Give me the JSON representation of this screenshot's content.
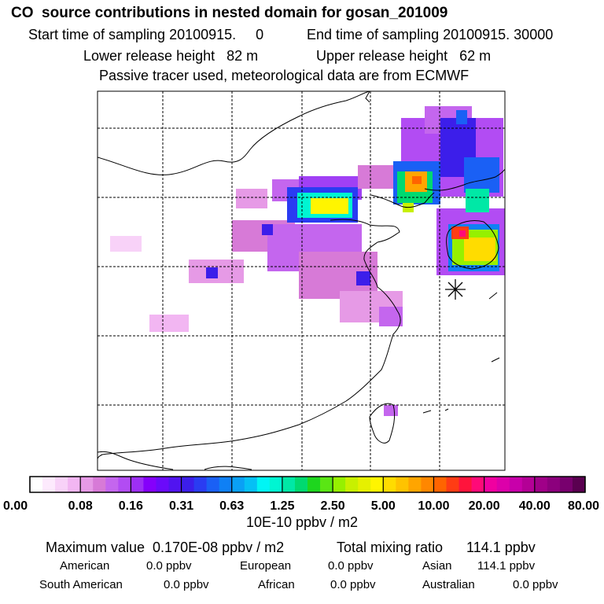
{
  "header": {
    "title": "CO  source contributions in nested domain for gosan_201009",
    "start": "Start time of sampling 20100915.     0",
    "end": "End time of sampling 20100915. 30000",
    "lower": "Lower release height   82 m",
    "upper": "Upper release height   62 m",
    "note": "Passive tracer used, meteorological data are from ECMWF"
  },
  "colorbar": {
    "ticks": [
      "0.00",
      "0.08",
      "0.16",
      "0.31",
      "0.63",
      "1.25",
      "2.50",
      "5.00",
      "10.00",
      "20.00",
      "40.00",
      "80.00"
    ],
    "unit": "10E-10 ppbv / m2",
    "colors": [
      "#ffffff",
      "#fdeafd",
      "#f8d2f8",
      "#f2b6f2",
      "#e69ae6",
      "#d77ad7",
      "#c466ee",
      "#b24cf3",
      "#9d2ff5",
      "#8500fb",
      "#6b0afa",
      "#5114f0",
      "#3c1eea",
      "#2a3cf2",
      "#1a60f5",
      "#0f80f5",
      "#0aa0f5",
      "#05c0f5",
      "#00f5f5",
      "#00f5d2",
      "#00e8a6",
      "#00d970",
      "#1ed61e",
      "#5ae614",
      "#96f000",
      "#c8f000",
      "#e6f000",
      "#fff500",
      "#ffdc00",
      "#ffc300",
      "#ffa500",
      "#ff8700",
      "#ff6400",
      "#ff3c14",
      "#ff143c",
      "#ff0a78",
      "#f000a0",
      "#dc00aa",
      "#c800aa",
      "#b40096",
      "#a00088",
      "#8c007d",
      "#78006e",
      "#5a0050"
    ]
  },
  "footer": {
    "max": "Maximum value  0.170E-08 ppbv / m2",
    "total": "Total mixing ratio      114.1 ppbv",
    "american": "American",
    "american_val": "0.0 ppbv",
    "european": "European",
    "european_val": "0.0 ppbv",
    "asian": "Asian",
    "asian_val": "114.1 ppbv",
    "south_american": "South American",
    "south_american_val": "0.0 ppbv",
    "african": "African",
    "african_val": "0.0 ppbv",
    "australian": "Australian",
    "australian_val": "0.0 ppbv"
  },
  "chart_data": {
    "type": "heatmap",
    "title": "CO  source contributions in nested domain for gosan_201009",
    "colorbar_levels": [
      0.0,
      0.08,
      0.16,
      0.31,
      0.63,
      1.25,
      2.5,
      5.0,
      10.0,
      20.0,
      40.0,
      80.0
    ],
    "colorbar_unit": "10E-10 ppbv / m2",
    "maximum_value": "0.170E-08 ppbv / m2",
    "total_mixing_ratio_ppbv": 114.1,
    "contributions_ppbv": {
      "American": 0.0,
      "European": 0.0,
      "Asian": 114.1,
      "South American": 0.0,
      "African": 0.0,
      "Australian": 0.0
    },
    "grid": true
  }
}
